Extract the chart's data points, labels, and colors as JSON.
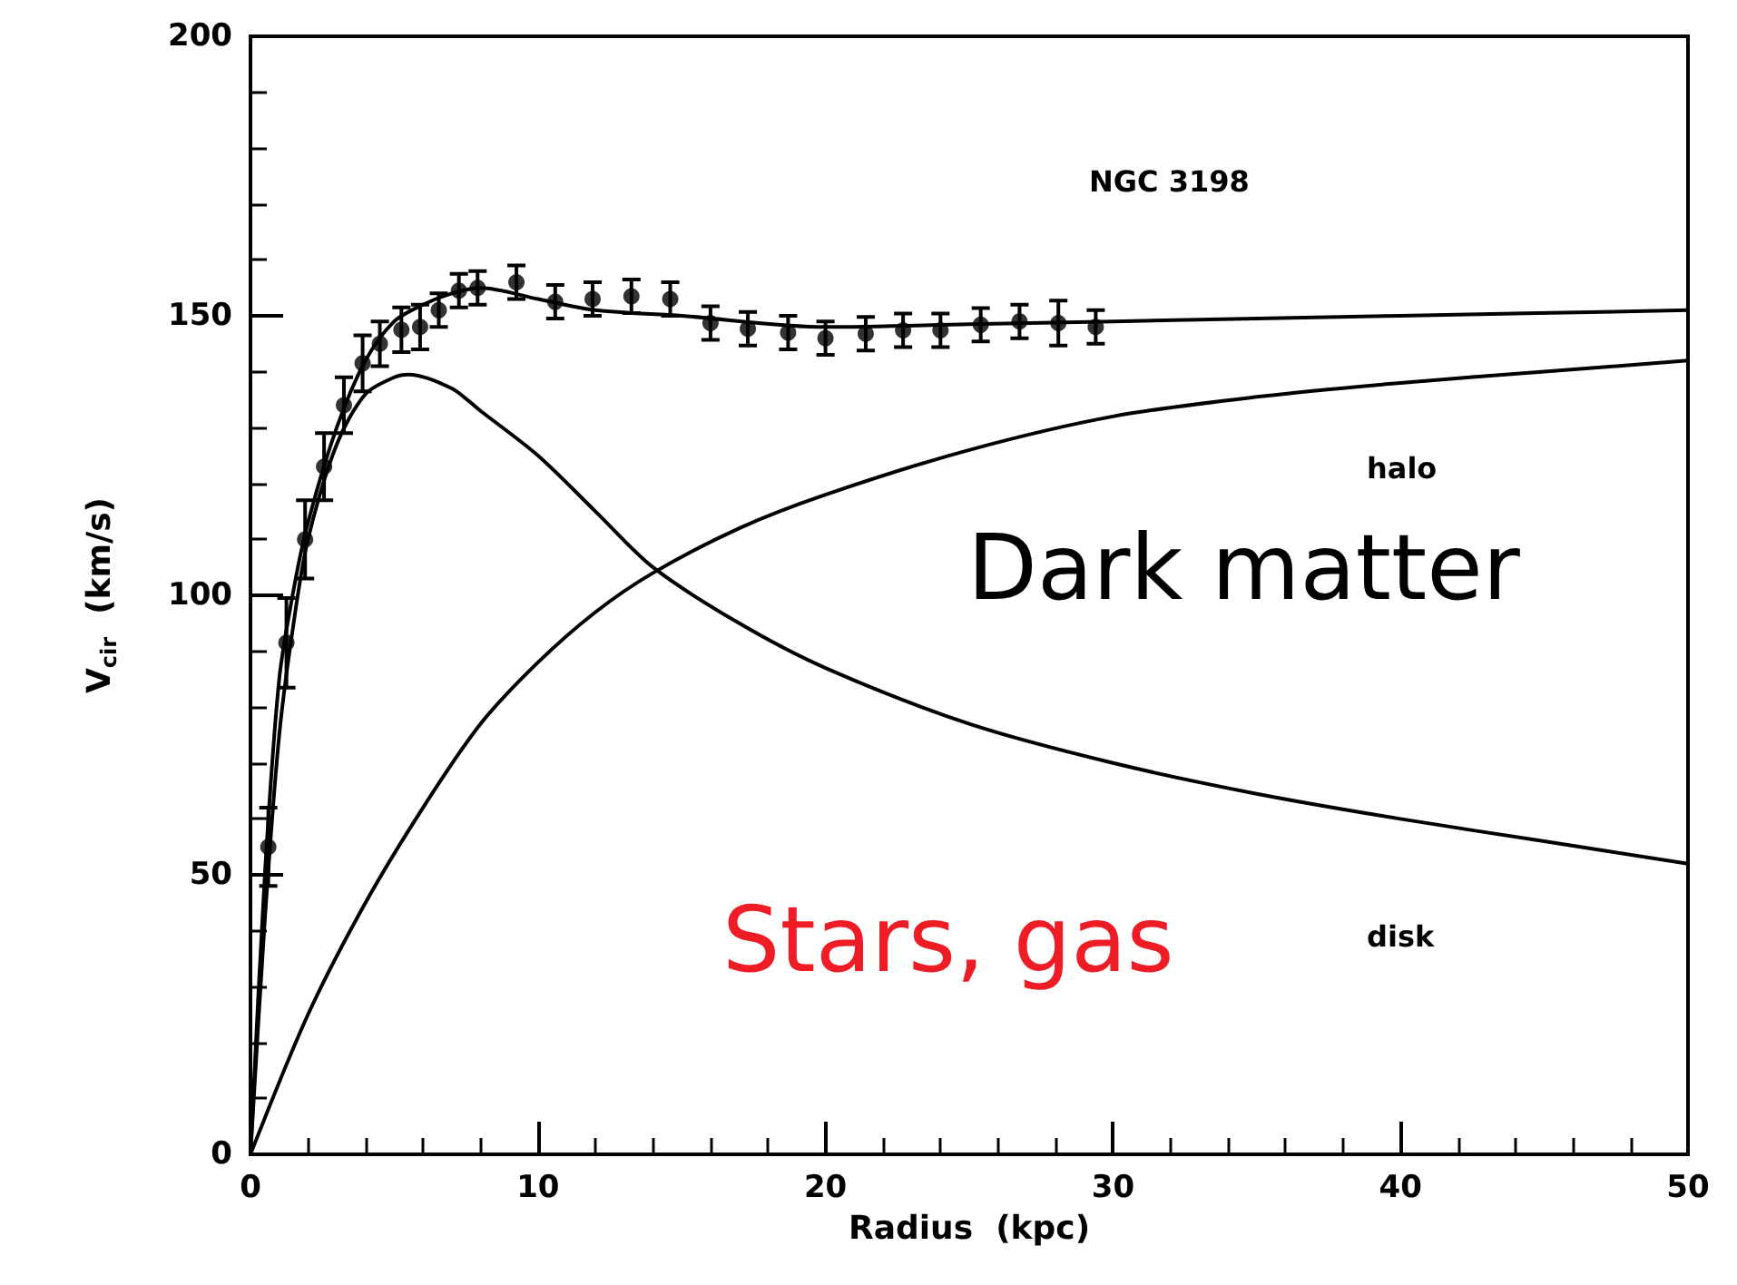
{
  "chart_data": {
    "type": "line",
    "xlabel": "Radius  (kpc)",
    "ylabel": "V$_{cir}$  (km/s)",
    "xlim": [
      0,
      50
    ],
    "xticks": [
      0,
      10,
      20,
      30,
      40,
      50
    ],
    "ylim": [
      0,
      200
    ],
    "yticks": [
      0,
      50,
      100,
      150,
      200
    ],
    "grid": false,
    "series": [
      {
        "type": "scatter",
        "color": "#000000",
        "marker": "circle",
        "x": [
          0.62,
          1.25,
          1.9,
          2.56,
          3.25,
          3.9,
          4.5,
          5.25,
          5.9,
          6.55,
          7.25,
          7.9,
          9.25,
          10.6,
          11.9,
          13.25,
          14.6,
          16,
          17.3,
          18.7,
          20,
          21.4,
          22.7,
          24,
          25.4,
          26.75,
          28.1,
          29.4
        ],
        "values": [
          55,
          91.5,
          110,
          123,
          134,
          141.5,
          145,
          147.5,
          148,
          151,
          154.5,
          155,
          156,
          152.5,
          153,
          153.5,
          153,
          148.7,
          147.7,
          147,
          146,
          146.8,
          147.4,
          147.4,
          148.4,
          149,
          148.7,
          148
        ],
        "errors": [
          7,
          8,
          7,
          6,
          5,
          5,
          4,
          4,
          4,
          3,
          3,
          3,
          3,
          3,
          3,
          3,
          3,
          3,
          3,
          3,
          3,
          3,
          3,
          3,
          3,
          3,
          4,
          3
        ]
      },
      {
        "color": "#000000",
        "line_style": "solid",
        "x": [
          0,
          0.5,
          1,
          1.5,
          2,
          3,
          4,
          5,
          6,
          7,
          8,
          10,
          12,
          15,
          20,
          25,
          30,
          40,
          50
        ],
        "values": [
          0,
          50,
          85,
          101,
          113,
          130,
          142,
          149,
          152,
          154,
          155,
          153,
          151,
          150,
          148,
          148.5,
          149,
          150,
          151
        ]
      },
      {
        "color": "#000000",
        "line_style": "solid",
        "x": [
          0,
          0.5,
          1,
          1.5,
          2,
          3,
          4,
          5,
          5.5,
          7,
          8,
          10,
          12,
          14,
          17,
          20,
          25,
          30,
          35,
          40,
          45,
          50
        ],
        "values": [
          0,
          42,
          75,
          95,
          110,
          127,
          136,
          139,
          139.5,
          137,
          133,
          125,
          115,
          105,
          95,
          87,
          77,
          70,
          64.5,
          60,
          56,
          52
        ]
      },
      {
        "color": "#000000",
        "line_style": "solid",
        "x": [
          0,
          2,
          4,
          6,
          8,
          10,
          12,
          14,
          17,
          20,
          25,
          30,
          35,
          40,
          45,
          50
        ],
        "values": [
          0,
          25,
          45,
          62,
          77,
          88,
          97,
          104,
          112,
          118,
          126,
          132,
          135.5,
          138,
          140,
          142
        ]
      }
    ],
    "annotations": [
      "NGC 3198",
      "halo",
      "Dark matter",
      "disk",
      "Stars, gas"
    ]
  }
}
